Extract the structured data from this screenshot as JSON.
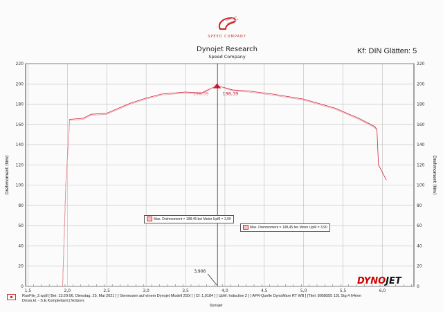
{
  "header": {
    "logo_text": "SPEED COMPANY",
    "title": "Dynojet Research",
    "subtitle": "Speed Company",
    "smoothing": "Kf: DIN Glätten: 5"
  },
  "footer": {
    "line1": "RunFile_2.wp8 [ Bei: 13:29:06, Dienstag, 25. Mai 2021 ] [ Gemessen auf einem Dynojet Modell 250i ] [ Cf: 1,0184 ] [ UpM: Inductive 2 ] [ AFR-Quelle DynoWare RT WB ] [Titel: 8958555 131 Stg.4 64mm",
    "line2": "Dross.kl. - S.E.Komplettanl.]  Notizen:",
    "brand": "DYNOJET"
  },
  "legend": [
    {
      "label": "Max. Drehmoment = 198,45 bei Motor UpM = 3,90"
    },
    {
      "label": "Max. Drehmoment = 198,45 bei Motor UpM = 3,90"
    }
  ],
  "chart_data": {
    "type": "line",
    "title": "Dynojet Research",
    "subtitle": "Speed Company",
    "xlabel": "Dynojet",
    "ylabel": "Drehmoment (Nm)",
    "ylabel_right": "Drehmoment (Nm)",
    "xlim": [
      1.47,
      6.4
    ],
    "ylim": [
      0,
      220
    ],
    "xticks": [
      "1,5",
      "2,0",
      "2,5",
      "3,0",
      "3,5",
      "4,0",
      "4,5",
      "5,0",
      "5,5",
      "6,0"
    ],
    "xtick_values": [
      1.5,
      2.0,
      2.5,
      3.0,
      3.5,
      4.0,
      4.5,
      5.0,
      5.5,
      6.0
    ],
    "yticks": [
      0,
      20,
      40,
      60,
      80,
      100,
      120,
      140,
      160,
      180,
      200,
      220
    ],
    "grid": true,
    "series": [
      {
        "color": "#d0233a",
        "x": [
          1.94,
          1.98,
          2.03,
          2.2,
          2.3,
          2.5,
          2.8,
          3.0,
          3.2,
          3.5,
          3.7,
          3.9,
          4.1,
          4.3,
          4.6,
          5.0,
          5.4,
          5.7,
          5.9,
          5.93,
          5.95,
          6.05
        ],
        "y": [
          0,
          100,
          165,
          166,
          170,
          171,
          181,
          186,
          190,
          192,
          191,
          198.4,
          194,
          193,
          190,
          185,
          176,
          166,
          158,
          155,
          120,
          105
        ]
      },
      {
        "color": "#e8a0aa",
        "x": [
          1.94,
          1.98,
          2.03,
          2.2,
          2.3,
          2.5,
          2.8,
          3.0,
          3.2,
          3.5,
          3.7,
          3.9,
          4.1,
          4.3,
          4.6,
          5.0,
          5.4,
          5.7,
          5.9,
          5.93
        ],
        "y": [
          0,
          100,
          164,
          165,
          169,
          170,
          180,
          185,
          189,
          191,
          190,
          198.4,
          193,
          192,
          189,
          184,
          175,
          165,
          157,
          154
        ]
      }
    ],
    "annotations": [
      {
        "text": "198,39",
        "x": 3.9,
        "y": 198.39
      },
      {
        "text": "198,39",
        "x": 3.9,
        "y": 198.39
      },
      {
        "text": "3,906",
        "x": 3.906,
        "y": 0
      }
    ],
    "legend_position": "center"
  }
}
